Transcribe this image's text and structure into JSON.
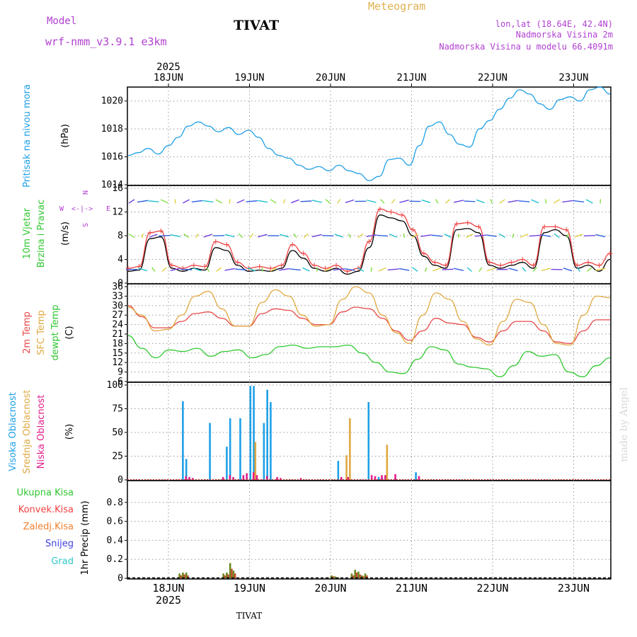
{
  "header": {
    "model_label": "Model",
    "model_name": "wrf-nmm_v3.9.1 e3km",
    "station": "TIVAT",
    "title": "Meteogram",
    "lonlat": "lon,lat (18.64E, 42.4N)",
    "altitude": "Nadmorska Visina 2m",
    "model_altitude": "Nadmorska Visina u modelu 66.4091m",
    "footer_station": "TIVAT",
    "credit": "made by Angel"
  },
  "colors": {
    "pressure": "#1ea0e6",
    "wind_speed": "#000000",
    "gust": "#f04040",
    "temp2m": "#e84848",
    "sfc_temp": "#e0a840",
    "dewpoint": "#30c830",
    "high_cloud": "#1ea0e6",
    "mid_cloud": "#e0a840",
    "low_cloud": "#e0208c",
    "total_precip": "#30c830",
    "conv_precip": "#f04040",
    "frozen_precip": "#f08030",
    "snow": "#4040e0",
    "hail": "#30c8c8",
    "label_purple": "#b040d0",
    "title_gold": "#e0b050"
  },
  "chart_data": [
    {
      "type": "line",
      "panel": "pressure",
      "ylabel_left": "Pritisak na nivou mora",
      "ylabel_unit": "(hPa)",
      "ylim": [
        1014,
        1021
      ],
      "yticks": [
        1014,
        1016,
        1018,
        1020
      ],
      "x_start": "2025-06-17 14:00",
      "x_step_hours": 6,
      "series": [
        {
          "name": "pressure",
          "values": [
            1016.1,
            1016.3,
            1016.6,
            1016.2,
            1016.8,
            1017.4,
            1018.2,
            1018.5,
            1018.2,
            1017.8,
            1018.1,
            1017.6,
            1017.9,
            1017.4,
            1016.6,
            1016.1,
            1015.9,
            1015.4,
            1015.1,
            1015.3,
            1015.0,
            1015.4,
            1015.0,
            1014.8,
            1014.3,
            1014.6,
            1015.8,
            1015.9,
            1015.4,
            1016.8,
            1018.2,
            1018.5,
            1017.6,
            1016.9,
            1016.7,
            1018.0,
            1018.6,
            1019.4,
            1020.2,
            1020.8,
            1020.5,
            1019.8,
            1019.4,
            1020.1,
            1020.3,
            1020.0,
            1020.8,
            1021.0,
            1020.5
          ]
        }
      ]
    },
    {
      "type": "line",
      "panel": "wind",
      "ylabel_left": [
        "10m Vjetar",
        "Brzina i Pravac"
      ],
      "ylabel_unit": "(m/s)",
      "compass": [
        "N",
        "S",
        "W",
        "E"
      ],
      "ylim": [
        0,
        16
      ],
      "yticks": [
        0,
        4,
        8,
        12,
        16
      ],
      "x_start": "2025-06-17 14:00",
      "x_step_hours": 6,
      "series": [
        {
          "name": "wind_speed",
          "values": [
            2.0,
            2.2,
            7.5,
            7.8,
            2.5,
            2.0,
            2.5,
            2.2,
            6.0,
            5.5,
            3.0,
            2.0,
            2.2,
            2.0,
            2.5,
            5.5,
            4.2,
            2.5,
            2.0,
            2.5,
            1.5,
            2.0,
            6.0,
            11.5,
            11.0,
            10.5,
            8.0,
            4.5,
            3.0,
            2.5,
            9.0,
            9.2,
            8.5,
            3.0,
            2.5,
            3.0,
            3.5,
            2.5,
            8.5,
            9.0,
            8.0,
            2.5,
            3.0,
            2.0,
            4.0
          ]
        },
        {
          "name": "gust",
          "values": [
            2.5,
            2.8,
            8.5,
            8.8,
            3.0,
            2.5,
            3.0,
            2.8,
            7.0,
            6.5,
            3.5,
            2.5,
            2.8,
            2.5,
            3.0,
            6.5,
            5.0,
            3.0,
            2.5,
            3.0,
            2.0,
            2.5,
            7.0,
            12.5,
            12.0,
            11.5,
            9.0,
            5.0,
            3.5,
            3.0,
            10.0,
            10.2,
            9.5,
            3.5,
            3.0,
            3.5,
            4.0,
            3.0,
            9.5,
            9.5,
            9.0,
            3.0,
            3.5,
            3.0,
            5.0
          ]
        }
      ]
    },
    {
      "type": "line",
      "panel": "temperature",
      "ylabel_left": [
        "2m Temp",
        "SFC Temp",
        "dewpt Temp"
      ],
      "ylabel_unit": "(C)",
      "ylim": [
        6,
        36
      ],
      "yticks": [
        6,
        9,
        12,
        15,
        18,
        21,
        24,
        27,
        30,
        33,
        36
      ],
      "x_start": "2025-06-17 14:00",
      "x_step_hours": 6,
      "series": [
        {
          "name": "2m Temp",
          "values": [
            30.0,
            26.5,
            23.0,
            23.0,
            25.0,
            27.5,
            28.0,
            26.0,
            23.5,
            23.5,
            27.5,
            29.0,
            28.5,
            26.0,
            24.0,
            24.0,
            28.0,
            29.5,
            29.0,
            26.0,
            22.0,
            19.0,
            22.0,
            26.0,
            24.5,
            24.0,
            20.0,
            18.5,
            22.0,
            25.0,
            25.0,
            22.0,
            18.5,
            18.0,
            22.0,
            25.5,
            25.5
          ]
        },
        {
          "name": "SFC Temp",
          "values": [
            29.5,
            27.0,
            22.0,
            22.5,
            27.0,
            33.0,
            34.5,
            29.0,
            23.5,
            23.5,
            31.0,
            35.0,
            33.0,
            27.0,
            23.5,
            24.0,
            32.0,
            36.0,
            34.0,
            27.0,
            21.5,
            18.0,
            27.0,
            34.0,
            32.0,
            25.0,
            19.5,
            17.5,
            25.0,
            32.0,
            31.0,
            24.0,
            18.0,
            17.5,
            27.0,
            33.0,
            32.5
          ]
        },
        {
          "name": "dewpt Temp",
          "values": [
            20.5,
            16.5,
            13.5,
            16.0,
            15.5,
            16.5,
            14.0,
            15.5,
            16.0,
            13.5,
            14.5,
            17.0,
            17.5,
            16.5,
            17.0,
            17.0,
            17.5,
            15.0,
            12.0,
            9.0,
            8.5,
            13.0,
            17.0,
            16.0,
            11.5,
            10.5,
            10.0,
            7.5,
            11.0,
            15.5,
            14.0,
            14.5,
            9.0,
            7.5,
            11.0,
            13.5
          ]
        }
      ]
    },
    {
      "type": "bar",
      "panel": "cloud",
      "ylabel_left": [
        "Visoka Oblacnost",
        "Srednja Oblacnost",
        "Niska Oblacnost"
      ],
      "ylabel_unit": "(%)",
      "ylim": [
        0,
        100
      ],
      "yticks": [
        0,
        25,
        50,
        75,
        100
      ],
      "x_hours_since_start": [
        14,
        15,
        16,
        22,
        25,
        27,
        28,
        31,
        32,
        34,
        35,
        36,
        38,
        39,
        40,
        41,
        42,
        43,
        48,
        49,
        60,
        62,
        63,
        63,
        69,
        70,
        72,
        73,
        74,
        76,
        83
      ],
      "series": [
        {
          "name": "Visoka Oblacnost",
          "values": [
            83,
            22,
            0,
            60,
            0,
            35,
            65,
            65,
            0,
            99,
            99,
            0,
            60,
            95,
            82,
            0,
            0,
            0,
            0,
            0,
            20,
            0,
            0,
            0,
            82,
            0,
            3,
            3,
            0,
            0,
            8
          ]
        },
        {
          "name": "Srednja Oblacnost",
          "values": [
            0,
            0,
            0,
            0,
            0,
            0,
            0,
            0,
            0,
            0,
            40,
            0,
            0,
            0,
            0,
            0,
            0,
            0,
            0,
            0,
            0,
            26,
            65,
            0,
            0,
            0,
            0,
            0,
            37,
            0,
            0
          ]
        },
        {
          "name": "Niska Oblacnost",
          "values": [
            4,
            3,
            2,
            0,
            3,
            5,
            3,
            5,
            7,
            8,
            5,
            0,
            4,
            0,
            0,
            3,
            2,
            0,
            2,
            0,
            3,
            3,
            0,
            0,
            5,
            4,
            5,
            5,
            0,
            6,
            4
          ]
        }
      ]
    },
    {
      "type": "bar",
      "panel": "precipitation",
      "ylabel_left": [
        "Ukupna Kisa",
        "Konvek.Kisa",
        "Zaledj.Kisa",
        "Snijeg",
        "Grad"
      ],
      "ylabel_unit": "1hr Precip (mm)",
      "ylim": [
        0,
        1.0
      ],
      "yticks": [
        0,
        0.2,
        0.4,
        0.6,
        0.8
      ],
      "x_hours_since_start": [
        13,
        14,
        15,
        26,
        27,
        28,
        29,
        30,
        57,
        58,
        59,
        60,
        64,
        65,
        66,
        67,
        68,
        72
      ],
      "series": [
        {
          "name": "Ukupna Kisa",
          "values": [
            0.05,
            0.06,
            0.06,
            0.05,
            0.06,
            0.16,
            0.08,
            0.0,
            0.01,
            0.03,
            0.02,
            0.01,
            0.05,
            0.09,
            0.07,
            0.03,
            0.05,
            0.0
          ]
        },
        {
          "name": "Konvek.Kisa",
          "values": [
            0.03,
            0.04,
            0.03,
            0.03,
            0.04,
            0.1,
            0.05,
            0.0,
            0.0,
            0.02,
            0.01,
            0.0,
            0.03,
            0.06,
            0.04,
            0.02,
            0.03,
            0.0
          ]
        }
      ]
    }
  ],
  "axis": {
    "year": "2025",
    "day_labels": [
      "18JUN",
      "19JUN",
      "20JUN",
      "21JUN",
      "22JUN",
      "23JUN"
    ]
  }
}
